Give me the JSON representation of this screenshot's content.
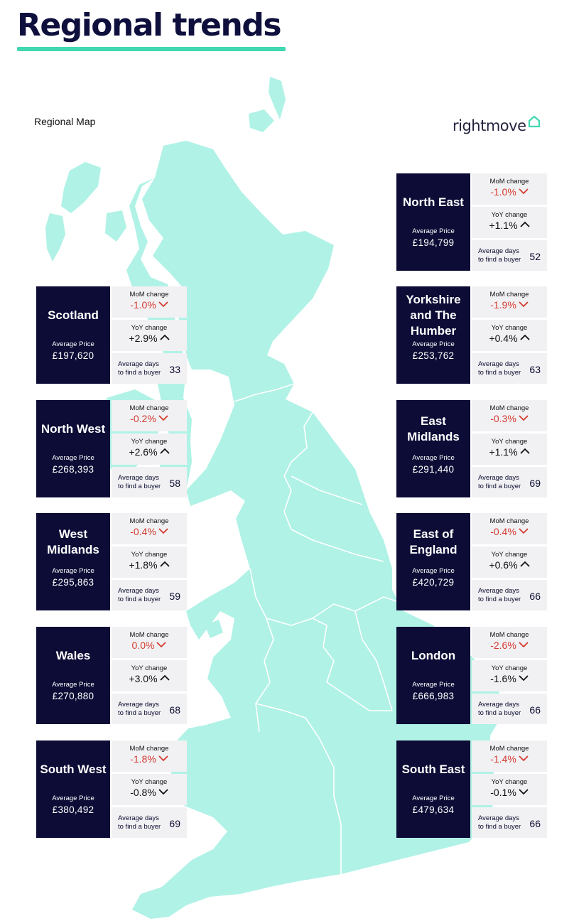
{
  "header": {
    "title": "Regional trends",
    "map_label": "Regional Map",
    "brand": "rightmove"
  },
  "colors": {
    "accent": "#3fd8b0",
    "map_fill": "#b0f2e6",
    "panel": "#0c0c36",
    "negative": "#d43a2e",
    "stat_bg": "#f1f1f4"
  },
  "labels": {
    "avg_price": "Average Price",
    "mom": "MoM change",
    "yoy": "YoY change",
    "days_line1": "Average days",
    "days_line2": "to find a buyer"
  },
  "left": [
    {
      "name": "Scotland",
      "price": "£197,620",
      "mom": "-1.0%",
      "mom_dir": "down",
      "yoy": "+2.9%",
      "yoy_dir": "up",
      "days": "33"
    },
    {
      "name": "North West",
      "price": "£268,393",
      "mom": "-0.2%",
      "mom_dir": "down",
      "yoy": "+2.6%",
      "yoy_dir": "up",
      "days": "58"
    },
    {
      "name": "West Midlands",
      "price": "£295,863",
      "mom": "-0.4%",
      "mom_dir": "down",
      "yoy": "+1.8%",
      "yoy_dir": "up",
      "days": "59"
    },
    {
      "name": "Wales",
      "price": "£270,880",
      "mom": "0.0%",
      "mom_dir": "down",
      "yoy": "+3.0%",
      "yoy_dir": "up",
      "days": "68"
    },
    {
      "name": "South West",
      "price": "£380,492",
      "mom": "-1.8%",
      "mom_dir": "down",
      "yoy": "-0.8%",
      "yoy_dir": "down",
      "days": "69"
    }
  ],
  "right": [
    {
      "name": "North East",
      "price": "£194,799",
      "mom": "-1.0%",
      "mom_dir": "down",
      "yoy": "+1.1%",
      "yoy_dir": "up",
      "days": "52"
    },
    {
      "name": "Yorkshire and The Humber",
      "price": "£253,762",
      "mom": "-1.9%",
      "mom_dir": "down",
      "yoy": "+0.4%",
      "yoy_dir": "up",
      "days": "63"
    },
    {
      "name": "East Midlands",
      "price": "£291,440",
      "mom": "-0.3%",
      "mom_dir": "down",
      "yoy": "+1.1%",
      "yoy_dir": "up",
      "days": "69"
    },
    {
      "name": "East of England",
      "price": "£420,729",
      "mom": "-0.4%",
      "mom_dir": "down",
      "yoy": "+0.6%",
      "yoy_dir": "up",
      "days": "66"
    },
    {
      "name": "London",
      "price": "£666,983",
      "mom": "-2.6%",
      "mom_dir": "down",
      "yoy": "-1.6%",
      "yoy_dir": "down",
      "days": "66"
    },
    {
      "name": "South East",
      "price": "£479,634",
      "mom": "-1.4%",
      "mom_dir": "down",
      "yoy": "-0.1%",
      "yoy_dir": "down",
      "days": "66"
    }
  ]
}
